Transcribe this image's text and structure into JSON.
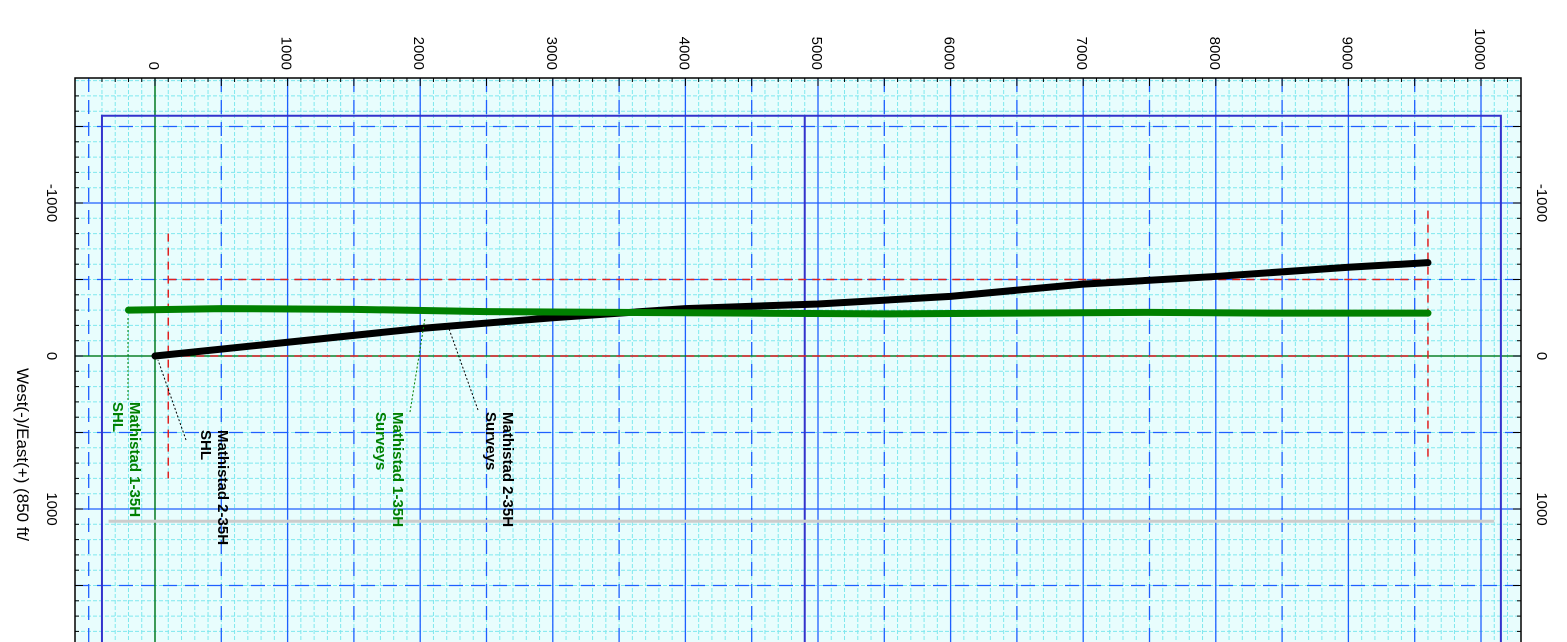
{
  "chart_data": {
    "type": "line",
    "title": "",
    "rotation": "rotated 90 degrees clockwise",
    "ylabel": "West(-)/East(+) (850 ft/",
    "x_ticks": [
      "0",
      "1000",
      "2000",
      "3000",
      "4000",
      "5000",
      "6000",
      "7000",
      "8000",
      "9000",
      "10000"
    ],
    "y_ticks": [
      "-1000",
      "0",
      "1000"
    ],
    "xlim": [
      -500,
      10300
    ],
    "ylim": [
      -2300,
      1850
    ],
    "grid": true,
    "series": [
      {
        "name": "Mathistad 2-35H Surveys",
        "color": "#000000",
        "x": [
          0,
          1000,
          2000,
          3000,
          4000,
          5000,
          6000,
          7000,
          8000,
          9000,
          9600
        ],
        "y": [
          0,
          90,
          180,
          250,
          310,
          340,
          390,
          470,
          520,
          580,
          610
        ]
      },
      {
        "name": "Mathistad 1-35H Surveys",
        "color": "#008000",
        "x": [
          -200,
          500,
          1500,
          2500,
          3500,
          4500,
          5500,
          6500,
          7500,
          8500,
          9600
        ],
        "y": [
          300,
          310,
          305,
          290,
          285,
          280,
          275,
          280,
          285,
          280,
          280
        ]
      }
    ],
    "annotations": [
      {
        "lines": [
          "Mathistad 1-35H",
          "SHL"
        ],
        "color": "#008000"
      },
      {
        "lines": [
          "Mathistad 2-35H",
          "SHL"
        ],
        "color": "#000000"
      },
      {
        "lines": [
          "Mathistad 1-35H",
          "Surveys"
        ],
        "color": "#008000"
      },
      {
        "lines": [
          "Mathistad 2-35H",
          "Surveys"
        ],
        "color": "#000000"
      }
    ],
    "colors": {
      "fine_grid": "#7fe8ee",
      "major_grid": "#1f5fff",
      "lease_line": "#3333cc",
      "setback": "#e02020",
      "zero_line": "#008000"
    }
  }
}
